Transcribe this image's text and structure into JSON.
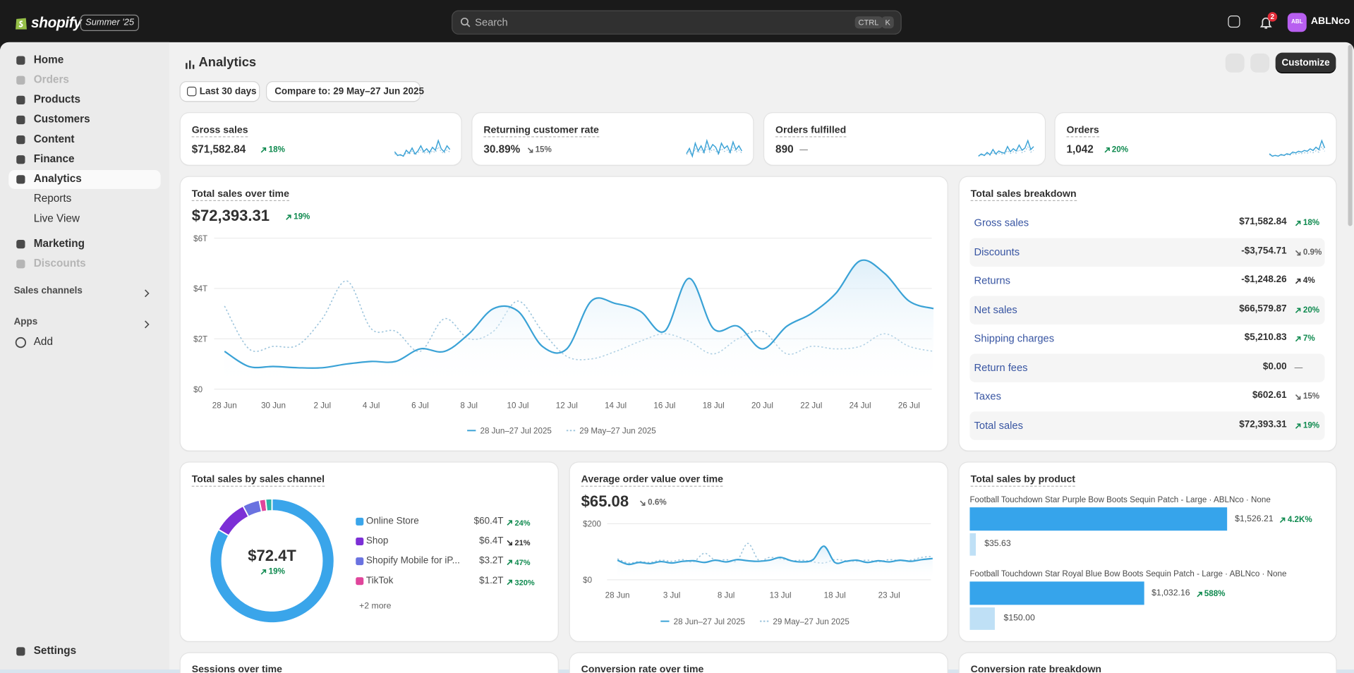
{
  "topbar": {
    "brand": "shopify",
    "edition": "Summer '25",
    "search": "Search",
    "keys": [
      "CTRL",
      "K"
    ],
    "notifications": "2",
    "avatar": "ABL",
    "store": "ABLNco"
  },
  "sidebar": {
    "items": [
      "Home",
      "Orders",
      "Products",
      "Customers",
      "Content",
      "Finance",
      "Analytics",
      "Reports",
      "Live View",
      "Marketing",
      "Discounts"
    ],
    "sections": [
      "Sales channels",
      "Apps"
    ],
    "add": "Add",
    "settings": "Settings"
  },
  "header": {
    "title": "Analytics",
    "date_range": "Last 30 days",
    "compare": "Compare to: 29 May–27 Jun 2025",
    "customize": "Customize"
  },
  "metrics": [
    {
      "label": "Gross sales",
      "value": "$71,582.84",
      "change": "18%",
      "trend": "up",
      "sparkline": [
        2,
        1.5,
        1.6,
        1.4,
        2.2,
        1.8,
        2.5,
        1.7,
        2.1,
        2.8,
        2,
        2.4,
        1.9,
        2.6,
        2.2,
        3.5,
        2.4,
        2,
        2.8,
        2.3
      ]
    },
    {
      "label": "Returning customer rate",
      "value": "30.89%",
      "change": "15%",
      "trend": "down",
      "sparkline": [
        1.8,
        2.2,
        1.6,
        2.6,
        2,
        2.4,
        1.9,
        2.8,
        2.1,
        2.5,
        2.3,
        1.8,
        2.6,
        2.2,
        2.4,
        1.9,
        2.7,
        2.1,
        2.4,
        2
      ]
    },
    {
      "label": "Orders fulfilled",
      "value": "890",
      "change": "—",
      "trend": "none",
      "sparkline": [
        1.5,
        1.8,
        1.6,
        2,
        1.7,
        2.4,
        1.8,
        2.2,
        2,
        1.9,
        2.8,
        2.1,
        2.5,
        2.2,
        3,
        2.3,
        2.6,
        3.6,
        2.4,
        2.8
      ]
    },
    {
      "label": "Orders",
      "value": "1,042",
      "change": "20%",
      "trend": "up",
      "sparkline": [
        1.8,
        1.5,
        1.6,
        1.5,
        1.7,
        1.6,
        1.8,
        1.7,
        2,
        1.9,
        2.1,
        2,
        2.2,
        2.1,
        2.4,
        2.2,
        2.6,
        2.3,
        3.4,
        2.5
      ]
    }
  ],
  "breakdown": {
    "title": "Total sales breakdown",
    "rows": [
      {
        "label": "Gross sales",
        "value": "$71,582.84",
        "change": "18%",
        "trend": "up"
      },
      {
        "label": "Discounts",
        "value": "-$3,754.71",
        "change": "0.9%",
        "trend": "down"
      },
      {
        "label": "Returns",
        "value": "-$1,248.26",
        "change": "4%",
        "trend": "up",
        "color": "#303030"
      },
      {
        "label": "Net sales",
        "value": "$66,579.87",
        "change": "20%",
        "trend": "up"
      },
      {
        "label": "Shipping charges",
        "value": "$5,210.83",
        "change": "7%",
        "trend": "up"
      },
      {
        "label": "Return fees",
        "value": "$0.00",
        "change": "—",
        "trend": "none"
      },
      {
        "label": "Taxes",
        "value": "$602.61",
        "change": "15%",
        "trend": "down"
      },
      {
        "label": "Total sales",
        "value": "$72,393.31",
        "change": "19%",
        "trend": "up"
      }
    ]
  },
  "more_cards": [
    "Sessions over time",
    "Conversion rate over time",
    "Conversion rate breakdown"
  ],
  "chart_data": [
    {
      "type": "line",
      "title": "Total sales over time",
      "total": "$72,393.31",
      "change": "19%",
      "trend": "up",
      "categories": [
        "28 Jun",
        null,
        "30 Jun",
        null,
        "2 Jul",
        null,
        "4 Jul",
        null,
        "6 Jul",
        null,
        "8 Jul",
        null,
        "10 Jul",
        null,
        "12 Jul",
        null,
        "14 Jul",
        null,
        "16 Jul",
        null,
        "18 Jul",
        null,
        "20 Jul",
        null,
        "22 Jul",
        null,
        "24 Jul",
        null,
        "26 Jul",
        null
      ],
      "series": [
        {
          "name": "28 Jun–27 Jul 2025",
          "color": "#3aa2d6",
          "values": [
            1.5,
            0.9,
            0.9,
            0.85,
            0.85,
            1.0,
            1.1,
            1.1,
            1.6,
            1.5,
            2.2,
            3.2,
            3.1,
            1.7,
            1.6,
            3.5,
            3.4,
            3.1,
            2.3,
            4.4,
            2.4,
            2.5,
            1.6,
            2.5,
            3.0,
            3.8,
            5.1,
            4.6,
            3.5,
            3.2
          ]
        },
        {
          "name": "29 May–27 Jun 2025",
          "color": "#9cc4dc",
          "dashed": true,
          "values": [
            3.3,
            1.6,
            1.7,
            1.75,
            2.8,
            4.3,
            2.4,
            2.3,
            1.5,
            2.8,
            2.0,
            2.3,
            3.5,
            2.3,
            1.3,
            1.2,
            1.5,
            1.9,
            2.2,
            1.9,
            1.4,
            2.0,
            2.3,
            1.4,
            1.7,
            1.6,
            1.7,
            2.2,
            1.7,
            1.5
          ]
        }
      ],
      "ylim": [
        0,
        6
      ],
      "yticks": [
        {
          "value": 0,
          "label": "$0"
        },
        {
          "value": 2,
          "label": "$2T"
        },
        {
          "value": 4,
          "label": "$4T"
        },
        {
          "value": 6,
          "label": "$6T"
        }
      ],
      "grid": true
    },
    {
      "type": "donut",
      "title": "Total sales by sales channel",
      "total": 72.4,
      "total_label": "$72.4T",
      "change": "19%",
      "trend": "up",
      "categories": [
        "Online Store",
        "Shop",
        "Shopify Mobile for iP...",
        "TikTok"
      ],
      "values": [
        60.4,
        6.4,
        3.2,
        1.2
      ],
      "value_labels": [
        "$60.4T",
        "$6.4T",
        "$3.2T",
        "$1.2T"
      ],
      "changes": [
        "24%",
        "21%",
        "47%",
        "320%"
      ],
      "trends": [
        "up",
        "down",
        "up",
        "up"
      ],
      "colors": [
        "#3aa5ea",
        "#7c2fd6",
        "#6a72e0",
        "#e0459b"
      ],
      "more": "+2 more"
    },
    {
      "type": "line",
      "title": "Average order value over time",
      "total": "$65.08",
      "change": "0.6%",
      "trend": "down",
      "categories": [
        "28 Jun",
        null,
        null,
        null,
        null,
        "3 Jul",
        null,
        null,
        null,
        null,
        "8 Jul",
        null,
        null,
        null,
        null,
        "13 Jul",
        null,
        null,
        null,
        null,
        "18 Jul",
        null,
        null,
        null,
        null,
        "23 Jul",
        null,
        null,
        null,
        null
      ],
      "series": [
        {
          "name": "28 Jun–27 Jul 2025",
          "color": "#3aa2d6",
          "values": [
            70,
            55,
            62,
            58,
            65,
            60,
            66,
            68,
            62,
            70,
            64,
            72,
            68,
            66,
            70,
            80,
            68,
            64,
            72,
            120,
            62,
            66,
            70,
            62,
            68,
            64,
            70,
            66,
            72,
            76
          ]
        },
        {
          "name": "29 May–27 Jun 2025",
          "color": "#9cc4dc",
          "dashed": true,
          "values": [
            75,
            60,
            65,
            62,
            70,
            66,
            72,
            64,
            95,
            70,
            72,
            68,
            130,
            70,
            80,
            75,
            68,
            70,
            64,
            60,
            72,
            68,
            66,
            70,
            64,
            72,
            68,
            70,
            80,
            84
          ]
        }
      ],
      "ylim": [
        0,
        200
      ],
      "yticks": [
        {
          "value": 0,
          "label": "$0"
        },
        {
          "value": 200,
          "label": "$200"
        }
      ],
      "grid": true
    },
    {
      "type": "bar",
      "title": "Total sales by product",
      "categories": [
        "Football Touchdown Star Purple Bow Boots Sequin Patch - Large · ABLNco · None",
        "Football Touchdown Star Royal Blue Bow Boots Sequin Patch - Large · ABLNco · None"
      ],
      "values": [
        1526.21,
        1032.16
      ],
      "value_labels": [
        "$1,526.21",
        "$1,032.16"
      ],
      "previous_values": [
        35.63,
        150
      ],
      "previous_labels": [
        "$35.63",
        "$150.00"
      ],
      "changes": [
        "4.2K%",
        "588%"
      ],
      "color": "#36a4eb",
      "previous_color": "#bfe0f6"
    }
  ]
}
